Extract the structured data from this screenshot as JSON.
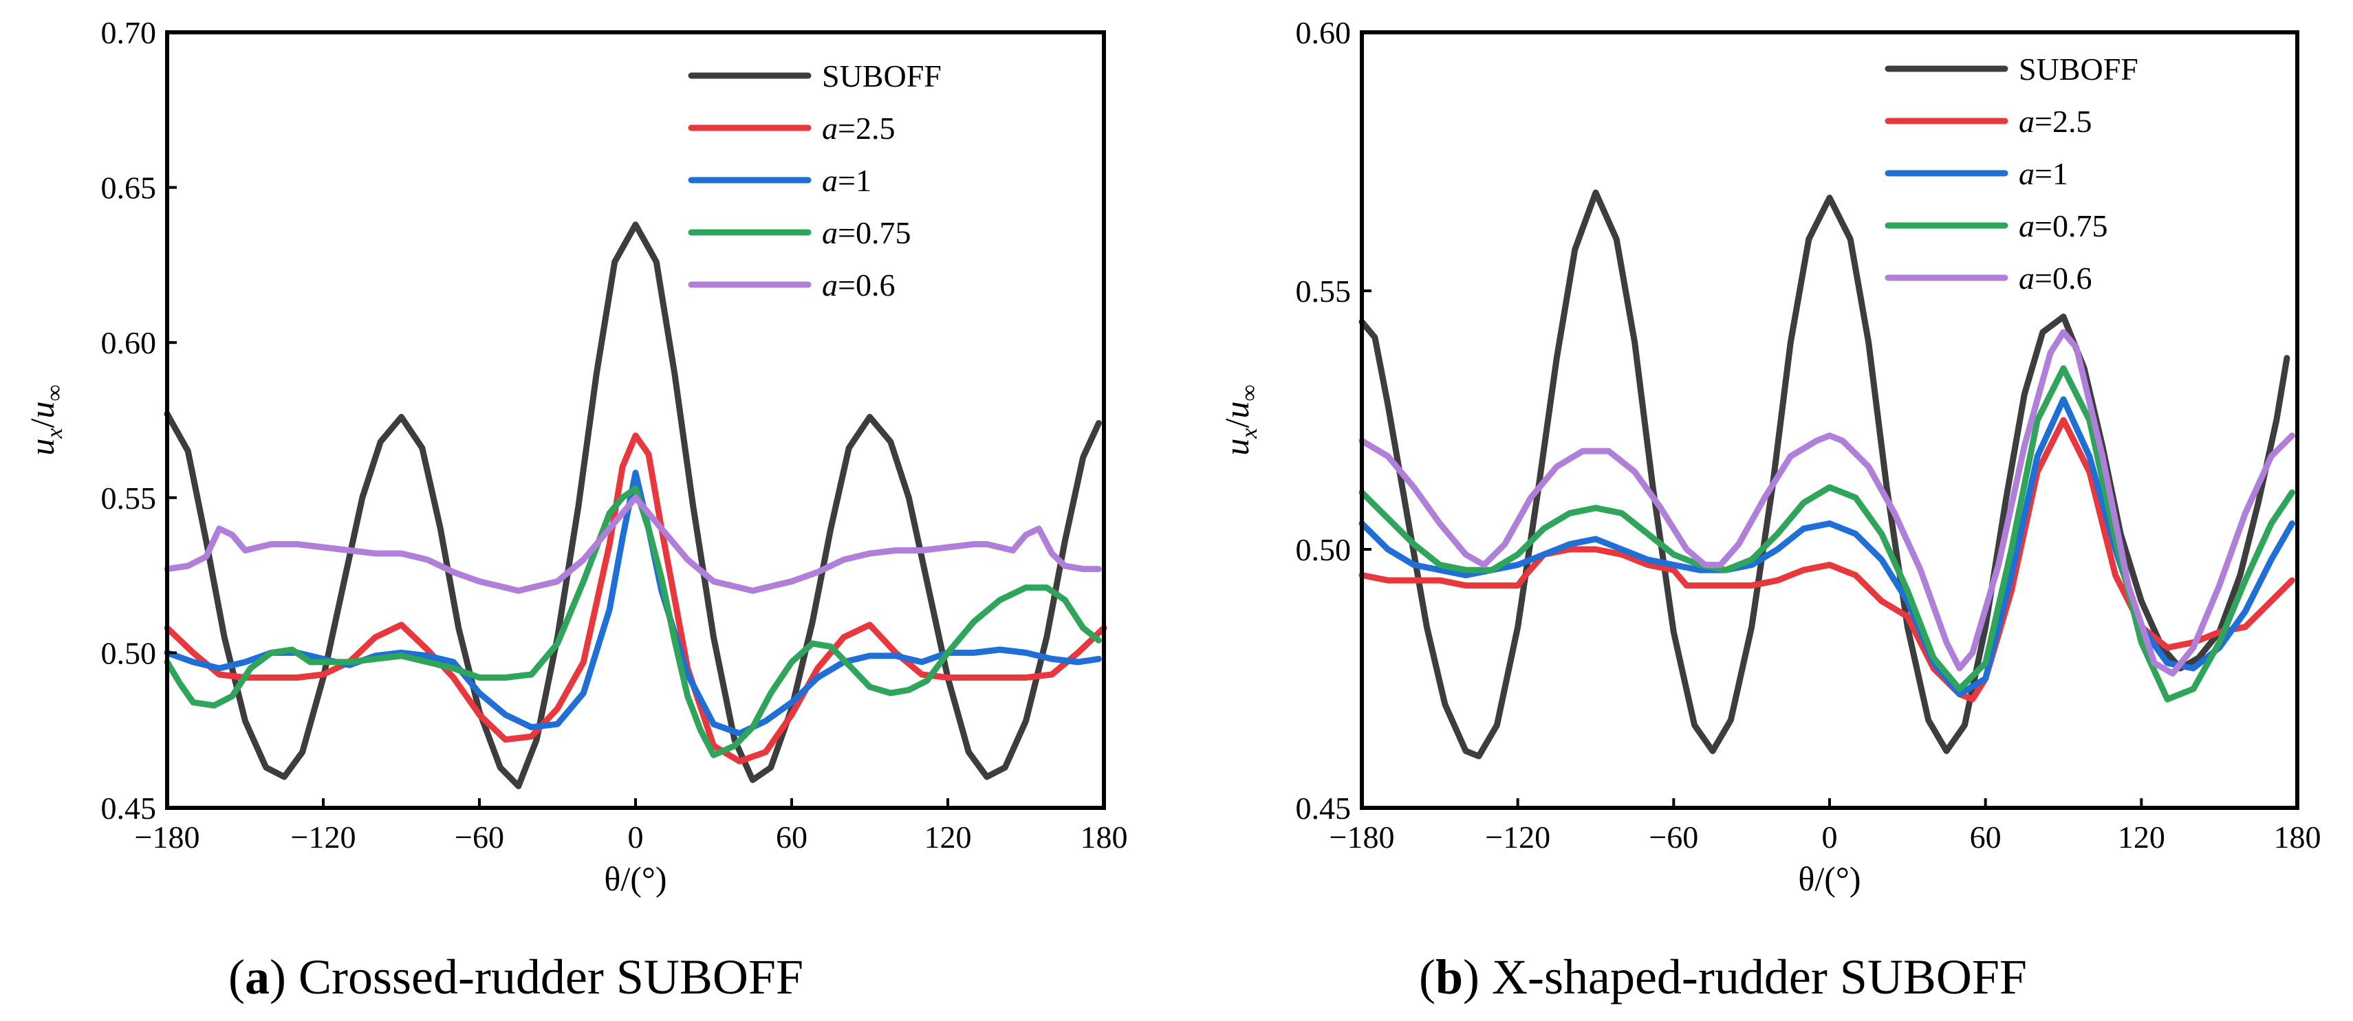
{
  "chart_data": [
    {
      "type": "line",
      "panel_letter": "a",
      "caption": "Crossed-rudder SUBOFF",
      "xlabel": "θ/(°)",
      "ylabel": "u_x/u_∞",
      "xlim": [
        -180,
        180
      ],
      "ylim": [
        0.45,
        0.7
      ],
      "xticks": [
        "−180",
        "−120",
        "−60",
        "0",
        "60",
        "120",
        "180"
      ],
      "xtick_values": [
        -180,
        -120,
        -60,
        0,
        60,
        120,
        180
      ],
      "yticks": [
        "0.45",
        "0.50",
        "0.55",
        "0.60",
        "0.65",
        "0.70"
      ],
      "ytick_values": [
        0.45,
        0.5,
        0.55,
        0.6,
        0.65,
        0.7
      ],
      "legend_position": "top-right",
      "series": [
        {
          "name": "SUBOFF",
          "prefix": "",
          "value_label": "SUBOFF",
          "color": "#3d3d3d",
          "x": [
            -180,
            -172,
            -165,
            -158,
            -150,
            -142,
            -135,
            -128,
            -120,
            -112,
            -105,
            -98,
            -90,
            -82,
            -75,
            -68,
            -60,
            -52,
            -45,
            -38,
            -30,
            -22,
            -15,
            -8,
            0,
            8,
            15,
            22,
            30,
            38,
            45,
            52,
            60,
            68,
            75,
            82,
            90,
            98,
            105,
            112,
            120,
            128,
            135,
            142,
            150,
            158,
            165,
            172,
            178
          ],
          "y": [
            0.577,
            0.565,
            0.536,
            0.505,
            0.478,
            0.463,
            0.46,
            0.468,
            0.492,
            0.523,
            0.55,
            0.568,
            0.576,
            0.566,
            0.54,
            0.508,
            0.481,
            0.463,
            0.457,
            0.472,
            0.505,
            0.547,
            0.59,
            0.626,
            0.638,
            0.626,
            0.59,
            0.548,
            0.505,
            0.472,
            0.459,
            0.463,
            0.482,
            0.51,
            0.54,
            0.566,
            0.576,
            0.568,
            0.55,
            0.523,
            0.492,
            0.468,
            0.46,
            0.463,
            0.478,
            0.505,
            0.536,
            0.563,
            0.574
          ]
        },
        {
          "name": "a=2.5",
          "prefix": "a",
          "value_label": "=2.5",
          "color": "#e8383d",
          "x": [
            -180,
            -170,
            -160,
            -150,
            -140,
            -130,
            -120,
            -110,
            -100,
            -90,
            -80,
            -70,
            -60,
            -50,
            -40,
            -30,
            -20,
            -10,
            -5,
            0,
            5,
            10,
            20,
            30,
            40,
            50,
            60,
            70,
            80,
            90,
            100,
            110,
            120,
            130,
            140,
            150,
            160,
            170,
            180
          ],
          "y": [
            0.508,
            0.5,
            0.493,
            0.492,
            0.492,
            0.492,
            0.493,
            0.497,
            0.505,
            0.509,
            0.501,
            0.492,
            0.48,
            0.472,
            0.473,
            0.482,
            0.497,
            0.535,
            0.56,
            0.57,
            0.564,
            0.54,
            0.495,
            0.47,
            0.465,
            0.468,
            0.48,
            0.495,
            0.505,
            0.509,
            0.5,
            0.493,
            0.492,
            0.492,
            0.492,
            0.492,
            0.493,
            0.5,
            0.508
          ]
        },
        {
          "name": "a=1",
          "prefix": "a",
          "value_label": "=1",
          "color": "#1f6fd6",
          "x": [
            -180,
            -170,
            -160,
            -150,
            -140,
            -130,
            -120,
            -110,
            -100,
            -90,
            -80,
            -70,
            -60,
            -50,
            -40,
            -30,
            -20,
            -10,
            -5,
            0,
            5,
            10,
            20,
            30,
            40,
            50,
            60,
            70,
            80,
            90,
            100,
            110,
            120,
            130,
            140,
            150,
            160,
            170,
            178
          ],
          "y": [
            0.5,
            0.497,
            0.495,
            0.497,
            0.5,
            0.5,
            0.498,
            0.496,
            0.499,
            0.5,
            0.499,
            0.497,
            0.487,
            0.48,
            0.476,
            0.477,
            0.487,
            0.514,
            0.537,
            0.558,
            0.54,
            0.52,
            0.493,
            0.477,
            0.474,
            0.478,
            0.484,
            0.492,
            0.497,
            0.499,
            0.499,
            0.497,
            0.5,
            0.5,
            0.501,
            0.5,
            0.498,
            0.497,
            0.498
          ]
        },
        {
          "name": "a=0.75",
          "prefix": "a",
          "value_label": "=0.75",
          "color": "#2ea55a",
          "x": [
            -180,
            -175,
            -170,
            -162,
            -155,
            -148,
            -140,
            -132,
            -125,
            -118,
            -110,
            -100,
            -90,
            -80,
            -70,
            -60,
            -50,
            -40,
            -30,
            -20,
            -10,
            -5,
            0,
            5,
            10,
            15,
            20,
            25,
            30,
            38,
            45,
            52,
            60,
            68,
            75,
            82,
            90,
            98,
            105,
            112,
            120,
            130,
            140,
            150,
            158,
            165,
            172,
            178
          ],
          "y": [
            0.497,
            0.49,
            0.484,
            0.483,
            0.486,
            0.495,
            0.5,
            0.501,
            0.497,
            0.497,
            0.497,
            0.498,
            0.499,
            0.497,
            0.495,
            0.492,
            0.492,
            0.493,
            0.503,
            0.523,
            0.545,
            0.55,
            0.553,
            0.54,
            0.524,
            0.504,
            0.486,
            0.475,
            0.467,
            0.47,
            0.476,
            0.487,
            0.497,
            0.503,
            0.502,
            0.496,
            0.489,
            0.487,
            0.488,
            0.491,
            0.5,
            0.51,
            0.517,
            0.521,
            0.521,
            0.517,
            0.508,
            0.504
          ]
        },
        {
          "name": "a=0.6",
          "prefix": "a",
          "value_label": "=0.6",
          "color": "#b07fd9",
          "x": [
            -180,
            -172,
            -165,
            -160,
            -155,
            -150,
            -145,
            -140,
            -135,
            -130,
            -120,
            -110,
            -100,
            -90,
            -80,
            -70,
            -60,
            -50,
            -45,
            -40,
            -30,
            -20,
            -10,
            0,
            10,
            20,
            30,
            40,
            45,
            50,
            60,
            70,
            80,
            90,
            100,
            110,
            120,
            130,
            135,
            140,
            145,
            150,
            155,
            160,
            165,
            172,
            178
          ],
          "y": [
            0.527,
            0.528,
            0.531,
            0.54,
            0.538,
            0.533,
            0.534,
            0.535,
            0.535,
            0.535,
            0.534,
            0.533,
            0.532,
            0.532,
            0.53,
            0.526,
            0.523,
            0.521,
            0.52,
            0.521,
            0.523,
            0.53,
            0.54,
            0.55,
            0.54,
            0.53,
            0.523,
            0.521,
            0.52,
            0.521,
            0.523,
            0.526,
            0.53,
            0.532,
            0.533,
            0.533,
            0.534,
            0.535,
            0.535,
            0.534,
            0.533,
            0.538,
            0.54,
            0.532,
            0.528,
            0.527,
            0.527
          ]
        }
      ]
    },
    {
      "type": "line",
      "panel_letter": "b",
      "caption": "X-shaped-rudder SUBOFF",
      "xlabel": "θ/(°)",
      "ylabel": "u_x/u_∞",
      "xlim": [
        -180,
        180
      ],
      "ylim": [
        0.45,
        0.6
      ],
      "xticks": [
        "−180",
        "−120",
        "−60",
        "0",
        "60",
        "120",
        "180"
      ],
      "xtick_values": [
        -180,
        -120,
        -60,
        0,
        60,
        120,
        180
      ],
      "yticks": [
        "0.45",
        "0.50",
        "0.55",
        "0.60"
      ],
      "ytick_values": [
        0.45,
        0.5,
        0.55,
        0.6
      ],
      "legend_position": "top-right",
      "series": [
        {
          "name": "SUBOFF",
          "prefix": "",
          "value_label": "SUBOFF",
          "color": "#3d3d3d",
          "x": [
            -180,
            -175,
            -170,
            -162,
            -155,
            -148,
            -140,
            -135,
            -128,
            -120,
            -112,
            -105,
            -98,
            -90,
            -82,
            -75,
            -68,
            -60,
            -52,
            -45,
            -38,
            -30,
            -22,
            -15,
            -8,
            0,
            8,
            15,
            22,
            30,
            38,
            45,
            52,
            60,
            68,
            75,
            82,
            90,
            98,
            105,
            112,
            120,
            128,
            135,
            142,
            150,
            158,
            165,
            172,
            176
          ],
          "y": [
            0.544,
            0.541,
            0.528,
            0.505,
            0.485,
            0.47,
            0.461,
            0.46,
            0.466,
            0.485,
            0.512,
            0.537,
            0.558,
            0.569,
            0.56,
            0.54,
            0.512,
            0.484,
            0.466,
            0.461,
            0.467,
            0.485,
            0.512,
            0.54,
            0.56,
            0.568,
            0.56,
            0.54,
            0.512,
            0.485,
            0.467,
            0.461,
            0.466,
            0.485,
            0.51,
            0.53,
            0.542,
            0.545,
            0.535,
            0.52,
            0.503,
            0.49,
            0.481,
            0.477,
            0.479,
            0.484,
            0.495,
            0.509,
            0.525,
            0.537
          ]
        },
        {
          "name": "a=2.5",
          "prefix": "a",
          "value_label": "=2.5",
          "color": "#e8383d",
          "x": [
            -180,
            -170,
            -160,
            -150,
            -140,
            -130,
            -120,
            -117,
            -110,
            -100,
            -90,
            -80,
            -70,
            -60,
            -55,
            -50,
            -40,
            -30,
            -20,
            -10,
            0,
            10,
            20,
            30,
            40,
            50,
            55,
            60,
            70,
            80,
            90,
            100,
            110,
            120,
            130,
            140,
            150,
            160,
            170,
            178
          ],
          "y": [
            0.495,
            0.494,
            0.494,
            0.494,
            0.493,
            0.493,
            0.493,
            0.495,
            0.499,
            0.5,
            0.5,
            0.499,
            0.497,
            0.496,
            0.493,
            0.493,
            0.493,
            0.493,
            0.494,
            0.496,
            0.497,
            0.495,
            0.49,
            0.487,
            0.477,
            0.472,
            0.471,
            0.475,
            0.492,
            0.515,
            0.525,
            0.515,
            0.495,
            0.485,
            0.481,
            0.482,
            0.484,
            0.485,
            0.49,
            0.494
          ]
        },
        {
          "name": "a=1",
          "prefix": "a",
          "value_label": "=1",
          "color": "#1f6fd6",
          "x": [
            -180,
            -170,
            -160,
            -150,
            -140,
            -130,
            -120,
            -110,
            -100,
            -90,
            -80,
            -70,
            -60,
            -50,
            -40,
            -30,
            -20,
            -10,
            0,
            10,
            20,
            30,
            40,
            50,
            60,
            70,
            80,
            90,
            100,
            110,
            120,
            130,
            140,
            150,
            160,
            170,
            178
          ],
          "y": [
            0.505,
            0.5,
            0.497,
            0.496,
            0.495,
            0.496,
            0.497,
            0.499,
            0.501,
            0.502,
            0.5,
            0.498,
            0.497,
            0.496,
            0.496,
            0.497,
            0.5,
            0.504,
            0.505,
            0.503,
            0.498,
            0.49,
            0.478,
            0.472,
            0.475,
            0.495,
            0.518,
            0.529,
            0.518,
            0.5,
            0.485,
            0.478,
            0.477,
            0.481,
            0.488,
            0.498,
            0.505
          ]
        },
        {
          "name": "a=0.75",
          "prefix": "a",
          "value_label": "=0.75",
          "color": "#2ea55a",
          "x": [
            -180,
            -170,
            -160,
            -150,
            -140,
            -130,
            -120,
            -110,
            -100,
            -90,
            -80,
            -70,
            -60,
            -50,
            -40,
            -30,
            -20,
            -10,
            0,
            10,
            20,
            30,
            40,
            50,
            60,
            70,
            80,
            90,
            100,
            110,
            120,
            130,
            140,
            150,
            160,
            170,
            178
          ],
          "y": [
            0.511,
            0.506,
            0.501,
            0.497,
            0.496,
            0.496,
            0.499,
            0.504,
            0.507,
            0.508,
            0.507,
            0.503,
            0.499,
            0.497,
            0.496,
            0.498,
            0.503,
            0.509,
            0.512,
            0.51,
            0.503,
            0.492,
            0.479,
            0.473,
            0.478,
            0.5,
            0.525,
            0.535,
            0.525,
            0.502,
            0.482,
            0.471,
            0.473,
            0.482,
            0.494,
            0.505,
            0.511
          ]
        },
        {
          "name": "a=0.6",
          "prefix": "a",
          "value_label": "=0.6",
          "color": "#b07fd9",
          "x": [
            -180,
            -170,
            -160,
            -150,
            -140,
            -133,
            -125,
            -115,
            -105,
            -95,
            -90,
            -85,
            -75,
            -65,
            -55,
            -48,
            -42,
            -35,
            -25,
            -15,
            -5,
            0,
            5,
            15,
            25,
            35,
            45,
            50,
            55,
            65,
            75,
            85,
            90,
            95,
            105,
            115,
            125,
            132,
            140,
            150,
            160,
            170,
            178
          ],
          "y": [
            0.521,
            0.518,
            0.512,
            0.505,
            0.499,
            0.497,
            0.501,
            0.51,
            0.516,
            0.519,
            0.519,
            0.519,
            0.515,
            0.508,
            0.5,
            0.497,
            0.497,
            0.501,
            0.51,
            0.518,
            0.521,
            0.522,
            0.521,
            0.516,
            0.507,
            0.496,
            0.482,
            0.477,
            0.48,
            0.497,
            0.52,
            0.538,
            0.542,
            0.539,
            0.518,
            0.493,
            0.478,
            0.476,
            0.481,
            0.493,
            0.507,
            0.518,
            0.522
          ]
        }
      ]
    }
  ]
}
